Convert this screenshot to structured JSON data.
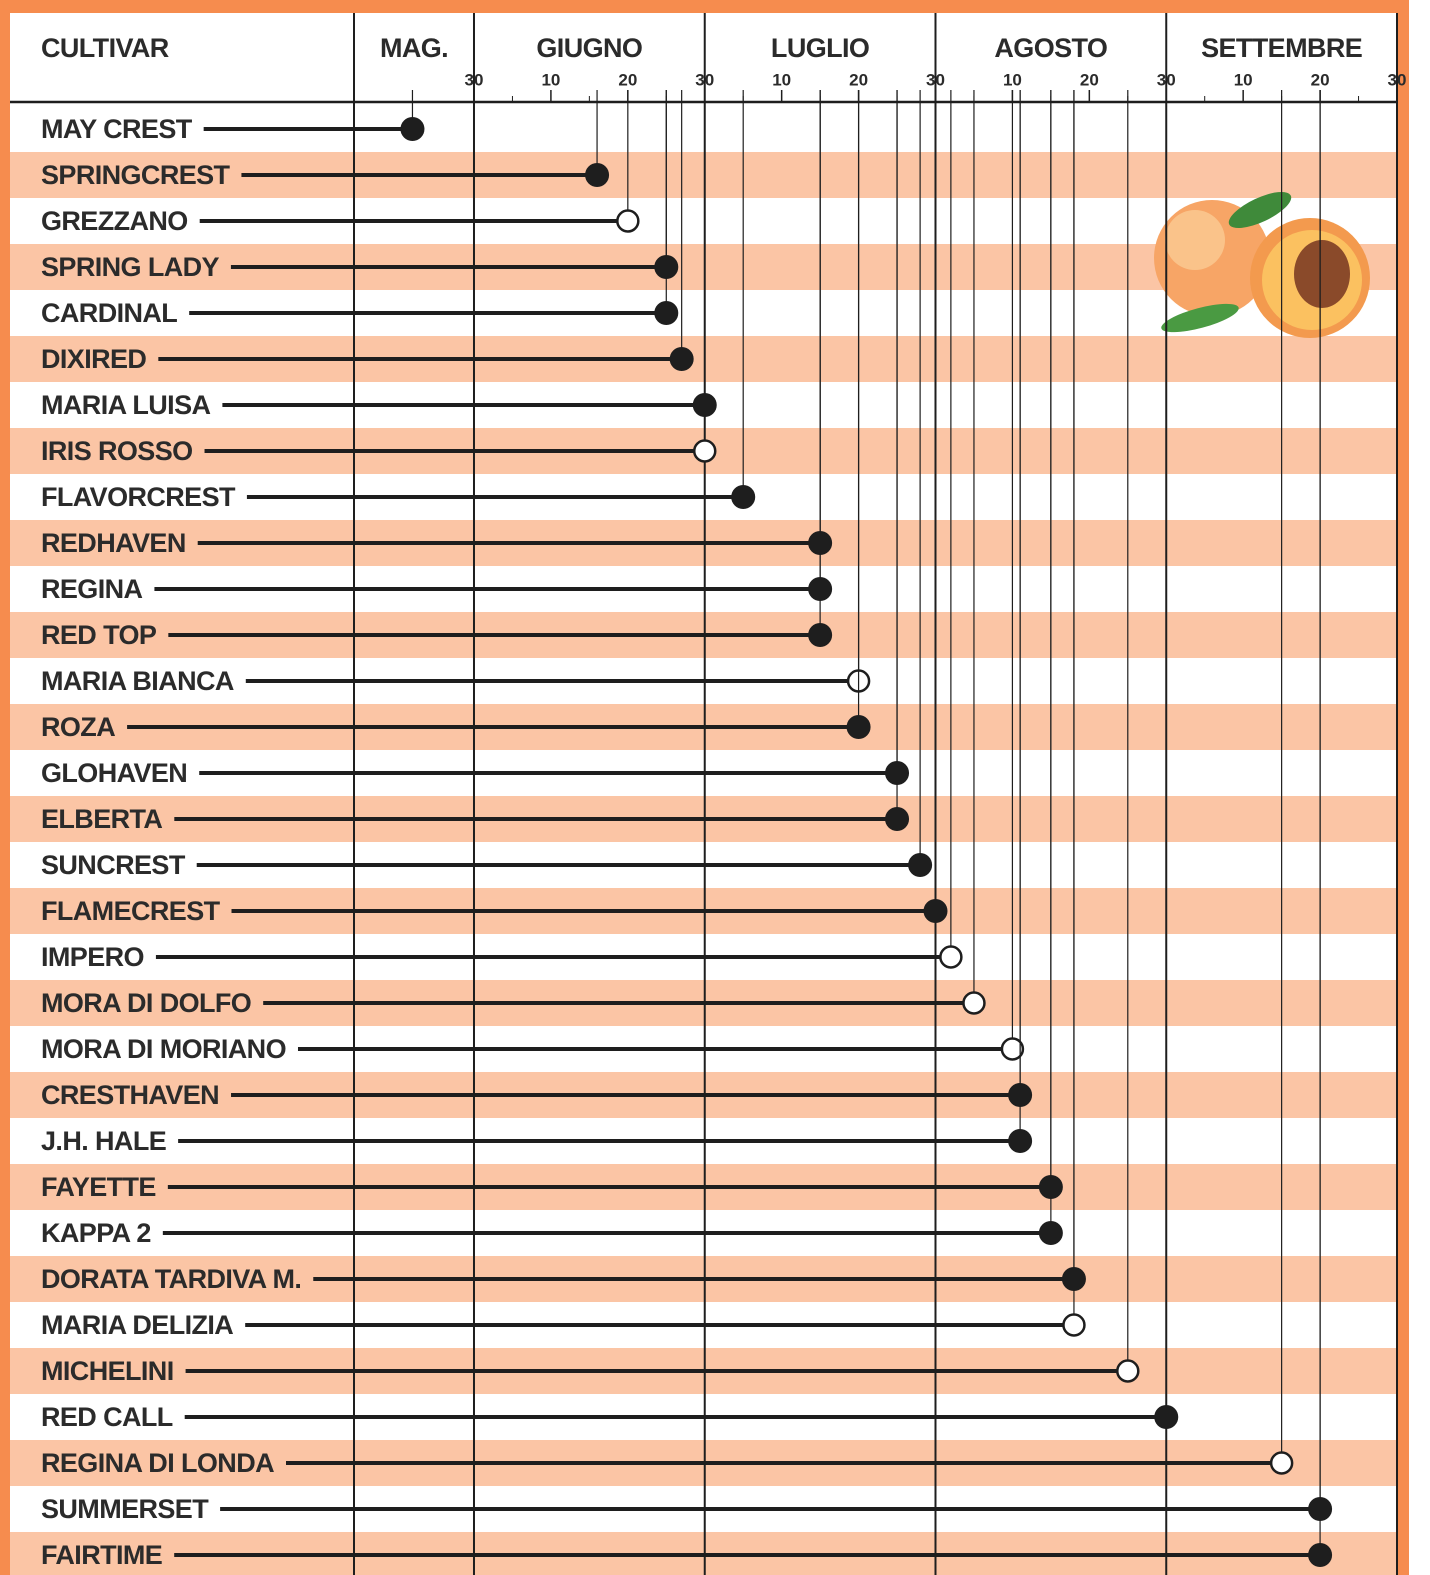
{
  "chart_data": {
    "type": "lollipop",
    "column_header": "CULTIVAR",
    "months": [
      "MAG.",
      "GIUGNO",
      "LUGLIO",
      "AGOSTO",
      "SETTEMBRE"
    ],
    "categories": [
      "MAY CREST",
      "SPRINGCREST",
      "GREZZANO",
      "SPRING LADY",
      "CARDINAL",
      "DIXIRED",
      "MARIA LUISA",
      "IRIS ROSSO",
      "FLAVORCREST",
      "REDHAVEN",
      "REGINA",
      "RED TOP",
      "MARIA BIANCA",
      "ROZA",
      "GLOHAVEN",
      "ELBERTA",
      "SUNCREST",
      "FLAMECREST",
      "IMPERO",
      "MORA DI DOLFO",
      "MORA DI MORIANO",
      "CRESTHAVEN",
      "J.H. HALE",
      "FAYETTE",
      "KAPPA 2",
      "DORATA TARDIVA M.",
      "MARIA DELIZIA",
      "MICHELINI",
      "RED CALL",
      "REGINA DI LONDA",
      "SUMMERSET",
      "FAIRTIME"
    ],
    "values": [
      -8,
      16,
      20,
      25,
      25,
      27,
      30,
      30,
      35,
      45,
      45,
      45,
      50,
      50,
      55,
      55,
      58,
      60,
      62,
      65,
      70,
      71,
      71,
      75,
      75,
      78,
      78,
      85,
      90,
      105,
      110,
      110
    ],
    "hollow": [
      false,
      false,
      true,
      false,
      false,
      false,
      false,
      true,
      false,
      false,
      false,
      false,
      true,
      false,
      false,
      false,
      false,
      false,
      true,
      true,
      true,
      false,
      false,
      false,
      false,
      false,
      true,
      true,
      false,
      true,
      false,
      false
    ],
    "xlim": [
      -15.6,
      120
    ],
    "xticks": [
      {
        "value": 0,
        "label": "30"
      },
      {
        "value": 10,
        "label": "10"
      },
      {
        "value": 20,
        "label": "20"
      },
      {
        "value": 30,
        "label": "30"
      },
      {
        "value": 40,
        "label": "10"
      },
      {
        "value": 50,
        "label": "20"
      },
      {
        "value": 60,
        "label": "30"
      },
      {
        "value": 70,
        "label": "10"
      },
      {
        "value": 80,
        "label": "20"
      },
      {
        "value": 90,
        "label": "30"
      },
      {
        "value": 100,
        "label": "10"
      },
      {
        "value": 110,
        "label": "20"
      },
      {
        "value": 120,
        "label": "30"
      }
    ],
    "stripe_color": "#fbc5a5",
    "frame_color": "#f68c4e",
    "color": "#1e1e1e"
  }
}
